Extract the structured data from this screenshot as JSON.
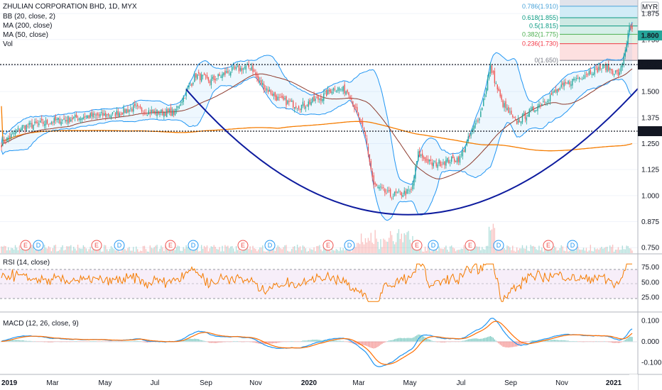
{
  "legend": {
    "symbol": "ZHULIAN CORPORATION BHD, 1D, MYX",
    "bb": "BB (20, close, 2)",
    "ma200": "MA (200, close)",
    "ma50": "MA (50, close)",
    "vol": "Vol"
  },
  "currency": "MYR",
  "rsi_label": "RSI (14, close)",
  "macd_label": "MACD (12, 26, close, 9)",
  "price_marker": "1.800",
  "level_labels": [
    "1.650",
    "1.320"
  ],
  "price_ticks": [
    "1.875",
    "1.750",
    "1.625",
    "1.500",
    "1.375",
    "1.250",
    "1.125",
    "1.000",
    "0.875",
    "0.750"
  ],
  "rsi_ticks": [
    "75.00",
    "50.00",
    "25.00"
  ],
  "macd_ticks": [
    "0.100",
    "0.000",
    "-0.100"
  ],
  "x_labels": [
    "2019",
    "Mar",
    "May",
    "Jul",
    "Sep",
    "Nov",
    "2020",
    "Mar",
    "May",
    "Jul",
    "Sep",
    "Nov",
    "2021"
  ],
  "fib": [
    {
      "label": "0.786(1.910)",
      "color": "#4aa3d9"
    },
    {
      "label": "0.618(1.855)",
      "color": "#089981"
    },
    {
      "label": "0.5(1.815)",
      "color": "#089981"
    },
    {
      "label": "0.382(1.775)",
      "color": "#4caf50"
    },
    {
      "label": "0.236(1.730)",
      "color": "#f23645"
    },
    {
      "label": "0(1.650)",
      "color": "#787b86"
    }
  ],
  "events": [
    "E",
    "D",
    "E",
    "D",
    "E",
    "D",
    "E",
    "D",
    "E",
    "D",
    "E",
    "D",
    "E",
    "D",
    "E",
    "D"
  ],
  "colors": {
    "up": "#26a69a",
    "down": "#ef5350",
    "bb": "#2196f3",
    "bbfill": "#2196f3",
    "ma200": "#f57c00",
    "ma50": "#8d3b2e",
    "rsi": "#f57c00",
    "rsifill": "#9c27b0",
    "macd": "#2196f3",
    "signal": "#ff6d00",
    "cup": "#0d1b9e",
    "grid": "#f0f3fa"
  },
  "chart_data": {
    "type": "candlestick",
    "price_range": [
      0.72,
      1.94
    ],
    "rsi_range": [
      10,
      85
    ],
    "macd_range": [
      -0.13,
      0.12
    ],
    "levels": [
      1.65,
      1.32
    ],
    "anchors": [
      [
        0,
        1.25
      ],
      [
        15,
        1.33
      ],
      [
        40,
        1.36
      ],
      [
        60,
        1.38
      ],
      [
        80,
        1.39
      ],
      [
        95,
        1.42
      ],
      [
        110,
        1.4
      ],
      [
        125,
        1.4
      ],
      [
        140,
        1.58
      ],
      [
        150,
        1.55
      ],
      [
        165,
        1.6
      ],
      [
        180,
        1.62
      ],
      [
        185,
        1.55
      ],
      [
        200,
        1.46
      ],
      [
        215,
        1.43
      ],
      [
        230,
        1.47
      ],
      [
        240,
        1.52
      ],
      [
        250,
        1.5
      ],
      [
        262,
        1.28
      ],
      [
        268,
        1.05
      ],
      [
        280,
        1.0
      ],
      [
        295,
        1.02
      ],
      [
        300,
        1.2
      ],
      [
        310,
        1.15
      ],
      [
        330,
        1.18
      ],
      [
        345,
        1.4
      ],
      [
        352,
        1.62
      ],
      [
        360,
        1.45
      ],
      [
        370,
        1.35
      ],
      [
        380,
        1.4
      ],
      [
        395,
        1.48
      ],
      [
        410,
        1.55
      ],
      [
        425,
        1.6
      ],
      [
        435,
        1.62
      ],
      [
        445,
        1.58
      ],
      [
        452,
        1.8
      ]
    ],
    "last_close": 1.8
  }
}
